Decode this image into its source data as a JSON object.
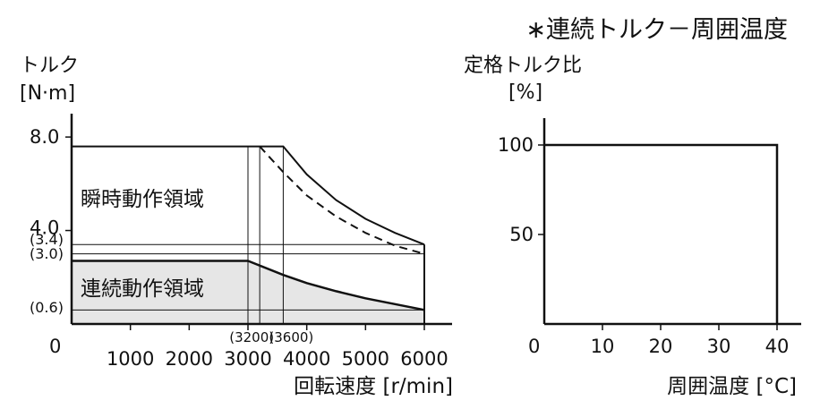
{
  "header": {
    "note": "∗連続トルク－周囲温度"
  },
  "chart_data": [
    {
      "type": "area",
      "ylabel_line1": "トルク",
      "ylabel_line2": "[N·m]",
      "xlabel": "回転速度 [r/min]",
      "origin_label": "0",
      "xlim": [
        0,
        6000
      ],
      "ylim": [
        0,
        9.0
      ],
      "x_ticks": [
        {
          "value": 1000,
          "label": "1000"
        },
        {
          "value": 2000,
          "label": "2000"
        },
        {
          "value": 3000,
          "label": "3000"
        },
        {
          "value": 4000,
          "label": "4000"
        },
        {
          "value": 5000,
          "label": "5000"
        },
        {
          "value": 6000,
          "label": "6000"
        }
      ],
      "y_ticks": [
        {
          "value": 8.0,
          "label": "8.0"
        },
        {
          "value": 4.0,
          "label": "4.0"
        }
      ],
      "y_refs": [
        {
          "value": 3.4,
          "label": "(3.4)"
        },
        {
          "value": 3.0,
          "label": "(3.0)"
        },
        {
          "value": 0.6,
          "label": "(0.6)"
        }
      ],
      "x_refs": [
        {
          "value": 3200,
          "label": "(3200)"
        },
        {
          "value": 3600,
          "label": "(3600)"
        }
      ],
      "regions": {
        "instantaneous": "瞬時動作領域",
        "continuous": "連続動作領域"
      },
      "series": [
        {
          "role": "instantaneous-boundary",
          "x": [
            0,
            3600,
            4000,
            4500,
            5000,
            5500,
            6000
          ],
          "y": [
            7.6,
            7.6,
            6.4,
            5.3,
            4.5,
            3.9,
            3.4
          ]
        },
        {
          "role": "instantaneous-boundary-dashed",
          "x": [
            3200,
            3600,
            4000,
            4500,
            5000,
            5500,
            6000
          ],
          "y": [
            7.6,
            6.5,
            5.5,
            4.6,
            3.9,
            3.35,
            3.0
          ]
        },
        {
          "role": "continuous-boundary",
          "x": [
            0,
            3000,
            3600,
            4000,
            4500,
            5000,
            5500,
            6000
          ],
          "y": [
            2.7,
            2.7,
            2.1,
            1.75,
            1.4,
            1.1,
            0.85,
            0.6
          ]
        }
      ],
      "fill_color": "#e6e6e6"
    },
    {
      "type": "line",
      "ylabel_line1": "定格トルク比",
      "ylabel_line2": "[%]",
      "xlabel": "周囲温度 [°C]",
      "origin_label": "0",
      "xlim": [
        0,
        45
      ],
      "ylim": [
        0,
        115
      ],
      "x_ticks": [
        {
          "value": 10,
          "label": "10"
        },
        {
          "value": 20,
          "label": "20"
        },
        {
          "value": 30,
          "label": "30"
        },
        {
          "value": 40,
          "label": "40"
        }
      ],
      "y_ticks": [
        {
          "value": 100,
          "label": "100"
        },
        {
          "value": 50,
          "label": "50"
        }
      ],
      "series": [
        {
          "role": "rated-torque-ratio",
          "x": [
            0,
            40,
            40
          ],
          "y": [
            100,
            100,
            0
          ]
        }
      ]
    }
  ]
}
